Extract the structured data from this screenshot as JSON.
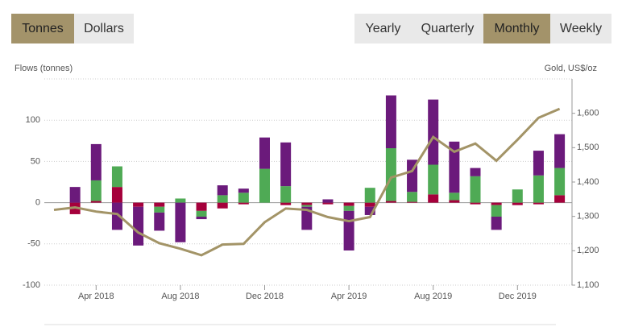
{
  "controls": {
    "units": [
      "Tonnes",
      "Dollars"
    ],
    "active_unit": 0,
    "periods": [
      "Yearly",
      "Quarterly",
      "Monthly",
      "Weekly"
    ],
    "active_period": 2
  },
  "chart_data": {
    "type": "bar",
    "stacked": true,
    "y_label": "Flows (tonnes)",
    "y2_label": "Gold, US$/oz",
    "categories": [
      null,
      null,
      "Apr 2018",
      null,
      null,
      null,
      "Aug 2018",
      null,
      null,
      null,
      "Dec 2018",
      null,
      null,
      null,
      "Apr 2019",
      null,
      null,
      null,
      "Aug 2019",
      null,
      null,
      null,
      "Dec 2019",
      null,
      null
    ],
    "series": [
      {
        "type": "bar",
        "color": "#a5003b",
        "values": [
          0,
          -14,
          2,
          19,
          -5,
          -5,
          0,
          -10,
          -7,
          -2,
          0,
          -3,
          -3,
          -2,
          -4,
          -5,
          2,
          1,
          10,
          3,
          -2,
          -3,
          -3,
          -2,
          9
        ]
      },
      {
        "type": "bar",
        "color": "#4faa55",
        "values": [
          0,
          0,
          25,
          25,
          0,
          -7,
          5,
          -7,
          9,
          12,
          41,
          20,
          -2,
          0,
          -6,
          18,
          64,
          12,
          36,
          9,
          32,
          -14,
          16,
          33,
          33
        ]
      },
      {
        "type": "bar",
        "color": "#6b1a7b",
        "values": [
          0,
          19,
          44,
          -33,
          -47,
          -22,
          -48,
          -3,
          12,
          5,
          38,
          53,
          -28,
          4,
          -48,
          -10,
          64,
          39,
          79,
          62,
          10,
          -16,
          0,
          30,
          41
        ]
      },
      {
        "type": "line",
        "axis": "y2",
        "color": "#a39467",
        "values": [
          1319,
          1326,
          1314,
          1307,
          1253,
          1222,
          1206,
          1187,
          1218,
          1220,
          1283,
          1323,
          1319,
          1298,
          1286,
          1298,
          1413,
          1432,
          1531,
          1488,
          1512,
          1462,
          1523,
          1587,
          1613
        ]
      }
    ],
    "ylim": [
      -100,
      150
    ],
    "yticks": [
      -100,
      -50,
      0,
      50,
      100
    ],
    "y2lim": [
      1100,
      1700
    ],
    "y2ticks": [
      {
        "value": 1100,
        "label": "1,100"
      },
      {
        "value": 1200,
        "label": "1,200"
      },
      {
        "value": 1300,
        "label": "1,300"
      },
      {
        "value": 1400,
        "label": "1,400"
      },
      {
        "value": 1500,
        "label": "1,500"
      },
      {
        "value": 1600,
        "label": "1,600"
      }
    ],
    "grid": true
  }
}
